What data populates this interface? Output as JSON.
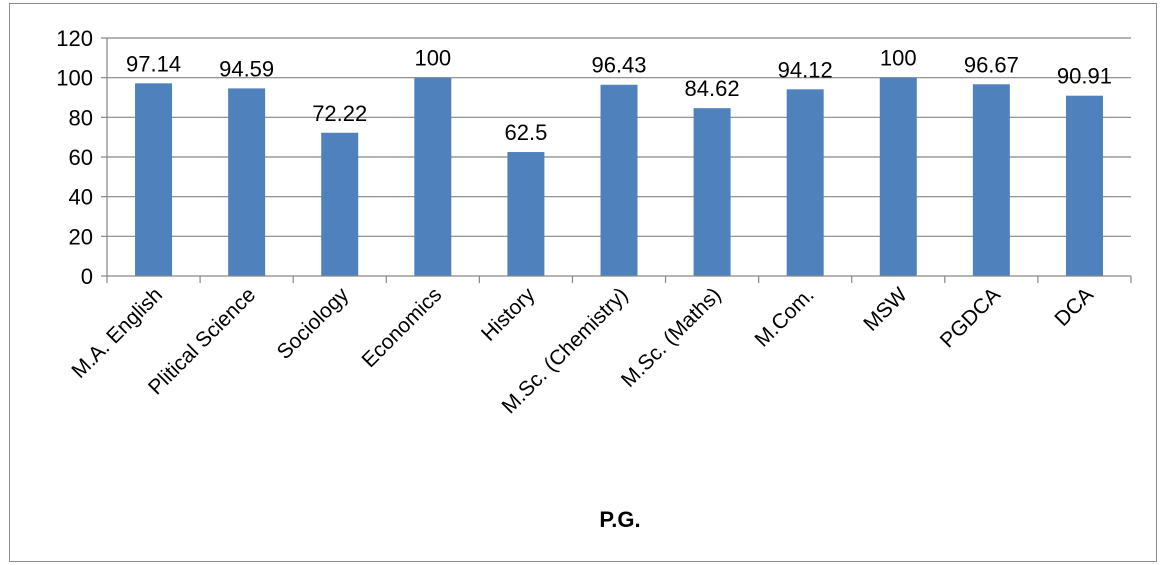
{
  "chart_data": {
    "type": "bar",
    "categories": [
      "M.A. English",
      "Plitical Science",
      "Sociology",
      "Economics",
      "History",
      "M.Sc. (Chemistry)",
      "M.Sc. (Maths)",
      "M.Com.",
      "MSW",
      "PGDCA",
      "DCA"
    ],
    "values": [
      97.14,
      94.59,
      72.22,
      100,
      62.5,
      96.43,
      84.62,
      94.12,
      100,
      96.67,
      90.91
    ],
    "data_labels": [
      "97.14",
      "94.59",
      "72.22",
      "100",
      "62.5",
      "96.43",
      "84.62",
      "94.12",
      "100",
      "96.67",
      "90.91"
    ],
    "y_ticks": [
      "0",
      "20",
      "40",
      "60",
      "80",
      "100",
      "120"
    ],
    "xlabel": "P.G.",
    "ylabel": "",
    "title": "",
    "ylim": [
      0,
      120
    ],
    "grid": true,
    "legend": "none",
    "bar_color": "#4f81bd",
    "grid_color": "#868686"
  }
}
